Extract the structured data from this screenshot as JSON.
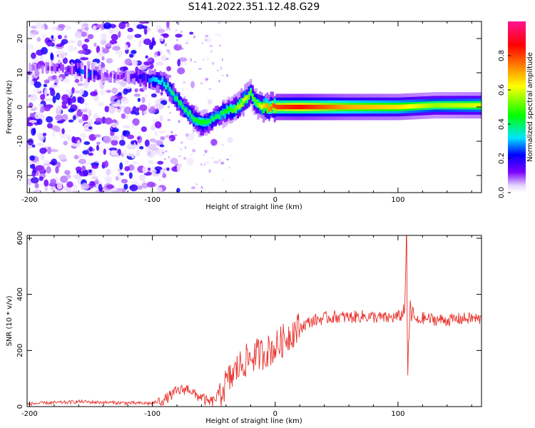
{
  "title": "S141.2022.351.12.48.G29",
  "colors": {
    "snr_line": "#e8302a",
    "frame": "#000000"
  },
  "chart_data": [
    {
      "type": "heatmap",
      "title": "S141.2022.351.12.48.G29",
      "xlabel": "Height of straight line (km)",
      "ylabel": "Frequency (Hz)",
      "xlim": [
        -202,
        168
      ],
      "ylim": [
        -25,
        25
      ],
      "xticks": [
        -200,
        -100,
        0,
        100
      ],
      "xtick_labels": [
        "-200",
        "-100",
        "0",
        "100"
      ],
      "yticks": [
        -20,
        -10,
        0,
        10,
        20
      ],
      "ytick_labels": [
        "-20",
        "-10",
        "0",
        "10",
        "20"
      ],
      "colorbar": {
        "label": "Normalized spectral amplitude",
        "range": [
          0,
          1
        ],
        "ticks": [
          0,
          0.2,
          0.4,
          0.6,
          0.8
        ],
        "tick_labels": [
          "0.0",
          "0.2",
          "0.4",
          "0.6",
          "0.8"
        ],
        "colormap": [
          "#ffffff",
          "#7b00ff",
          "#0000ff",
          "#00e5ff",
          "#00ff00",
          "#ffff00",
          "#ff8000",
          "#ff0000",
          "#ff1493"
        ]
      },
      "ridge": {
        "x": [
          -200,
          -180,
          -165,
          -155,
          -140,
          -120,
          -100,
          -90,
          -80,
          -70,
          -60,
          -52,
          -45,
          -38,
          -30,
          -25,
          -20,
          -15,
          -10,
          0,
          20,
          60,
          100,
          130,
          168
        ],
        "freq": [
          11,
          11.5,
          11,
          10,
          9,
          9,
          8,
          7,
          2,
          -2,
          -5,
          -4,
          -2,
          -1,
          0,
          2,
          4,
          1,
          0,
          0,
          0,
          0,
          0,
          0.5,
          0.5
        ],
        "amplitude": [
          0.08,
          0.12,
          0.15,
          0.3,
          0.1,
          0.12,
          0.3,
          0.35,
          0.4,
          0.4,
          0.45,
          0.4,
          0.4,
          0.45,
          0.55,
          0.6,
          0.5,
          0.5,
          0.65,
          0.8,
          0.85,
          0.7,
          0.65,
          0.55,
          0.6
        ]
      }
    },
    {
      "type": "line",
      "xlabel": "Height of straight line (km)",
      "ylabel": "SNR (10 * v/v)",
      "xlim": [
        -202,
        168
      ],
      "ylim": [
        0,
        610
      ],
      "xticks": [
        -200,
        -100,
        0,
        100
      ],
      "xtick_labels": [
        "-200",
        "-100",
        "0",
        "100"
      ],
      "yticks": [
        0,
        200,
        400,
        600
      ],
      "ytick_labels": [
        "0",
        "200",
        "400",
        "600"
      ],
      "series": [
        {
          "name": "SNR",
          "x": [
            -202,
            -190,
            -180,
            -170,
            -160,
            -150,
            -140,
            -130,
            -120,
            -110,
            -100,
            -95,
            -90,
            -85,
            -80,
            -75,
            -70,
            -65,
            -60,
            -55,
            -50,
            -45,
            -40,
            -35,
            -30,
            -25,
            -20,
            -15,
            -10,
            -5,
            0,
            5,
            10,
            15,
            20,
            25,
            30,
            40,
            50,
            60,
            70,
            80,
            90,
            100,
            105,
            107,
            108,
            110,
            115,
            120,
            130,
            140,
            150,
            160,
            168
          ],
          "y": [
            10,
            12,
            14,
            15,
            18,
            16,
            15,
            14,
            13,
            12,
            12,
            18,
            25,
            40,
            55,
            60,
            65,
            40,
            35,
            15,
            20,
            50,
            80,
            110,
            140,
            160,
            175,
            185,
            190,
            200,
            210,
            230,
            250,
            270,
            280,
            295,
            305,
            315,
            320,
            318,
            322,
            320,
            315,
            320,
            330,
            600,
            100,
            360,
            300,
            315,
            310,
            308,
            312,
            315,
            310
          ]
        }
      ]
    }
  ]
}
